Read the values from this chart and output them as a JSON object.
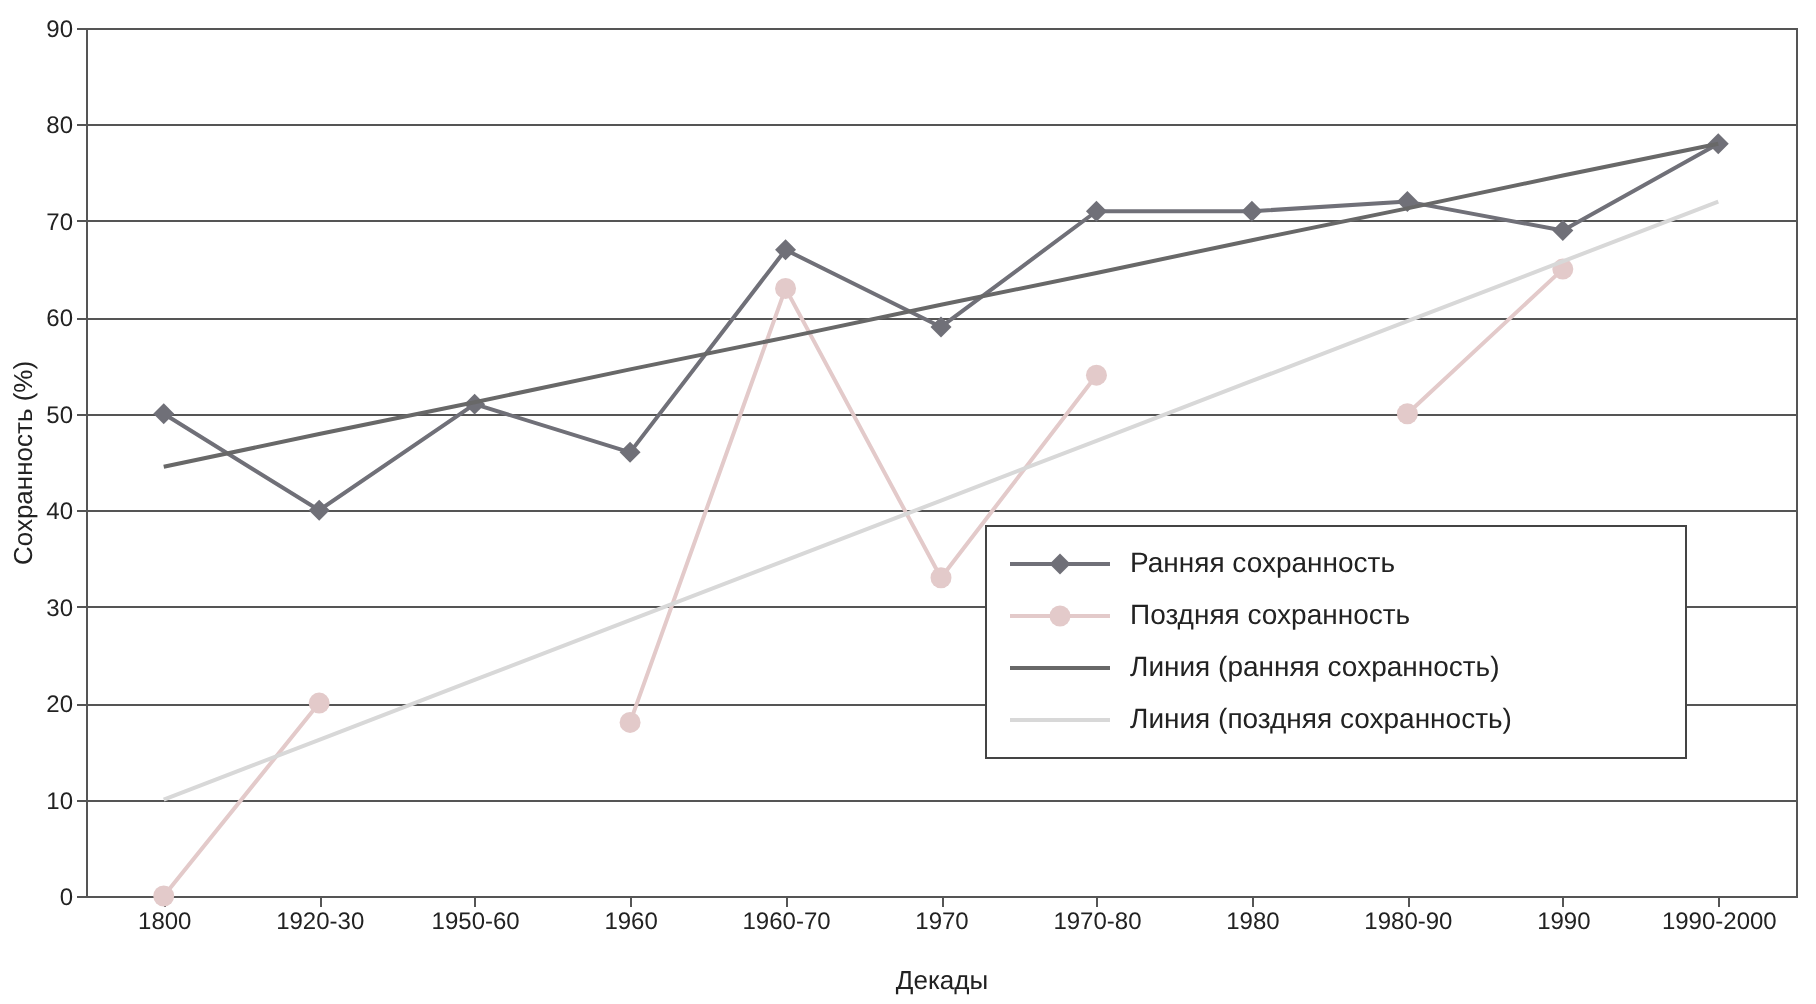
{
  "chart_data": {
    "type": "line",
    "xlabel": "Декады",
    "ylabel": "Сохранность (%)",
    "categories": [
      "1800",
      "1920-30",
      "1950-60",
      "1960",
      "1960-70",
      "1970",
      "1970-80",
      "1980",
      "1980-90",
      "1990",
      "1990-2000"
    ],
    "ylim": [
      0,
      90
    ],
    "yticks": [
      0,
      10,
      20,
      30,
      40,
      50,
      60,
      70,
      80,
      90
    ],
    "grid": "y",
    "legend": "bottom right",
    "line_style": "solid",
    "series": [
      {
        "name": "Ранняя сохранность",
        "color": "#707078",
        "marker": "diamond",
        "values": [
          50,
          40,
          51,
          46,
          67,
          59,
          71,
          71,
          72,
          69,
          78
        ]
      },
      {
        "name": "Поздняя сохранность",
        "color": "#e3caca",
        "marker": "circle",
        "values": [
          0,
          20,
          null,
          18,
          63,
          33,
          54,
          null,
          50,
          65,
          null
        ]
      },
      {
        "name": "Линия (ранняя сохранность)",
        "color": "#686868",
        "marker": "none",
        "values": [
          44.5,
          47.9,
          51.2,
          54.6,
          57.9,
          61.3,
          64.6,
          68,
          71.3,
          74.7,
          78
        ]
      },
      {
        "name": "Линия (поздняя сохранность)",
        "color": "#d8d8d8",
        "marker": "none",
        "values": [
          10,
          16.2,
          22.4,
          28.6,
          34.8,
          41,
          47.2,
          53.4,
          59.6,
          65.8,
          72
        ]
      }
    ]
  }
}
